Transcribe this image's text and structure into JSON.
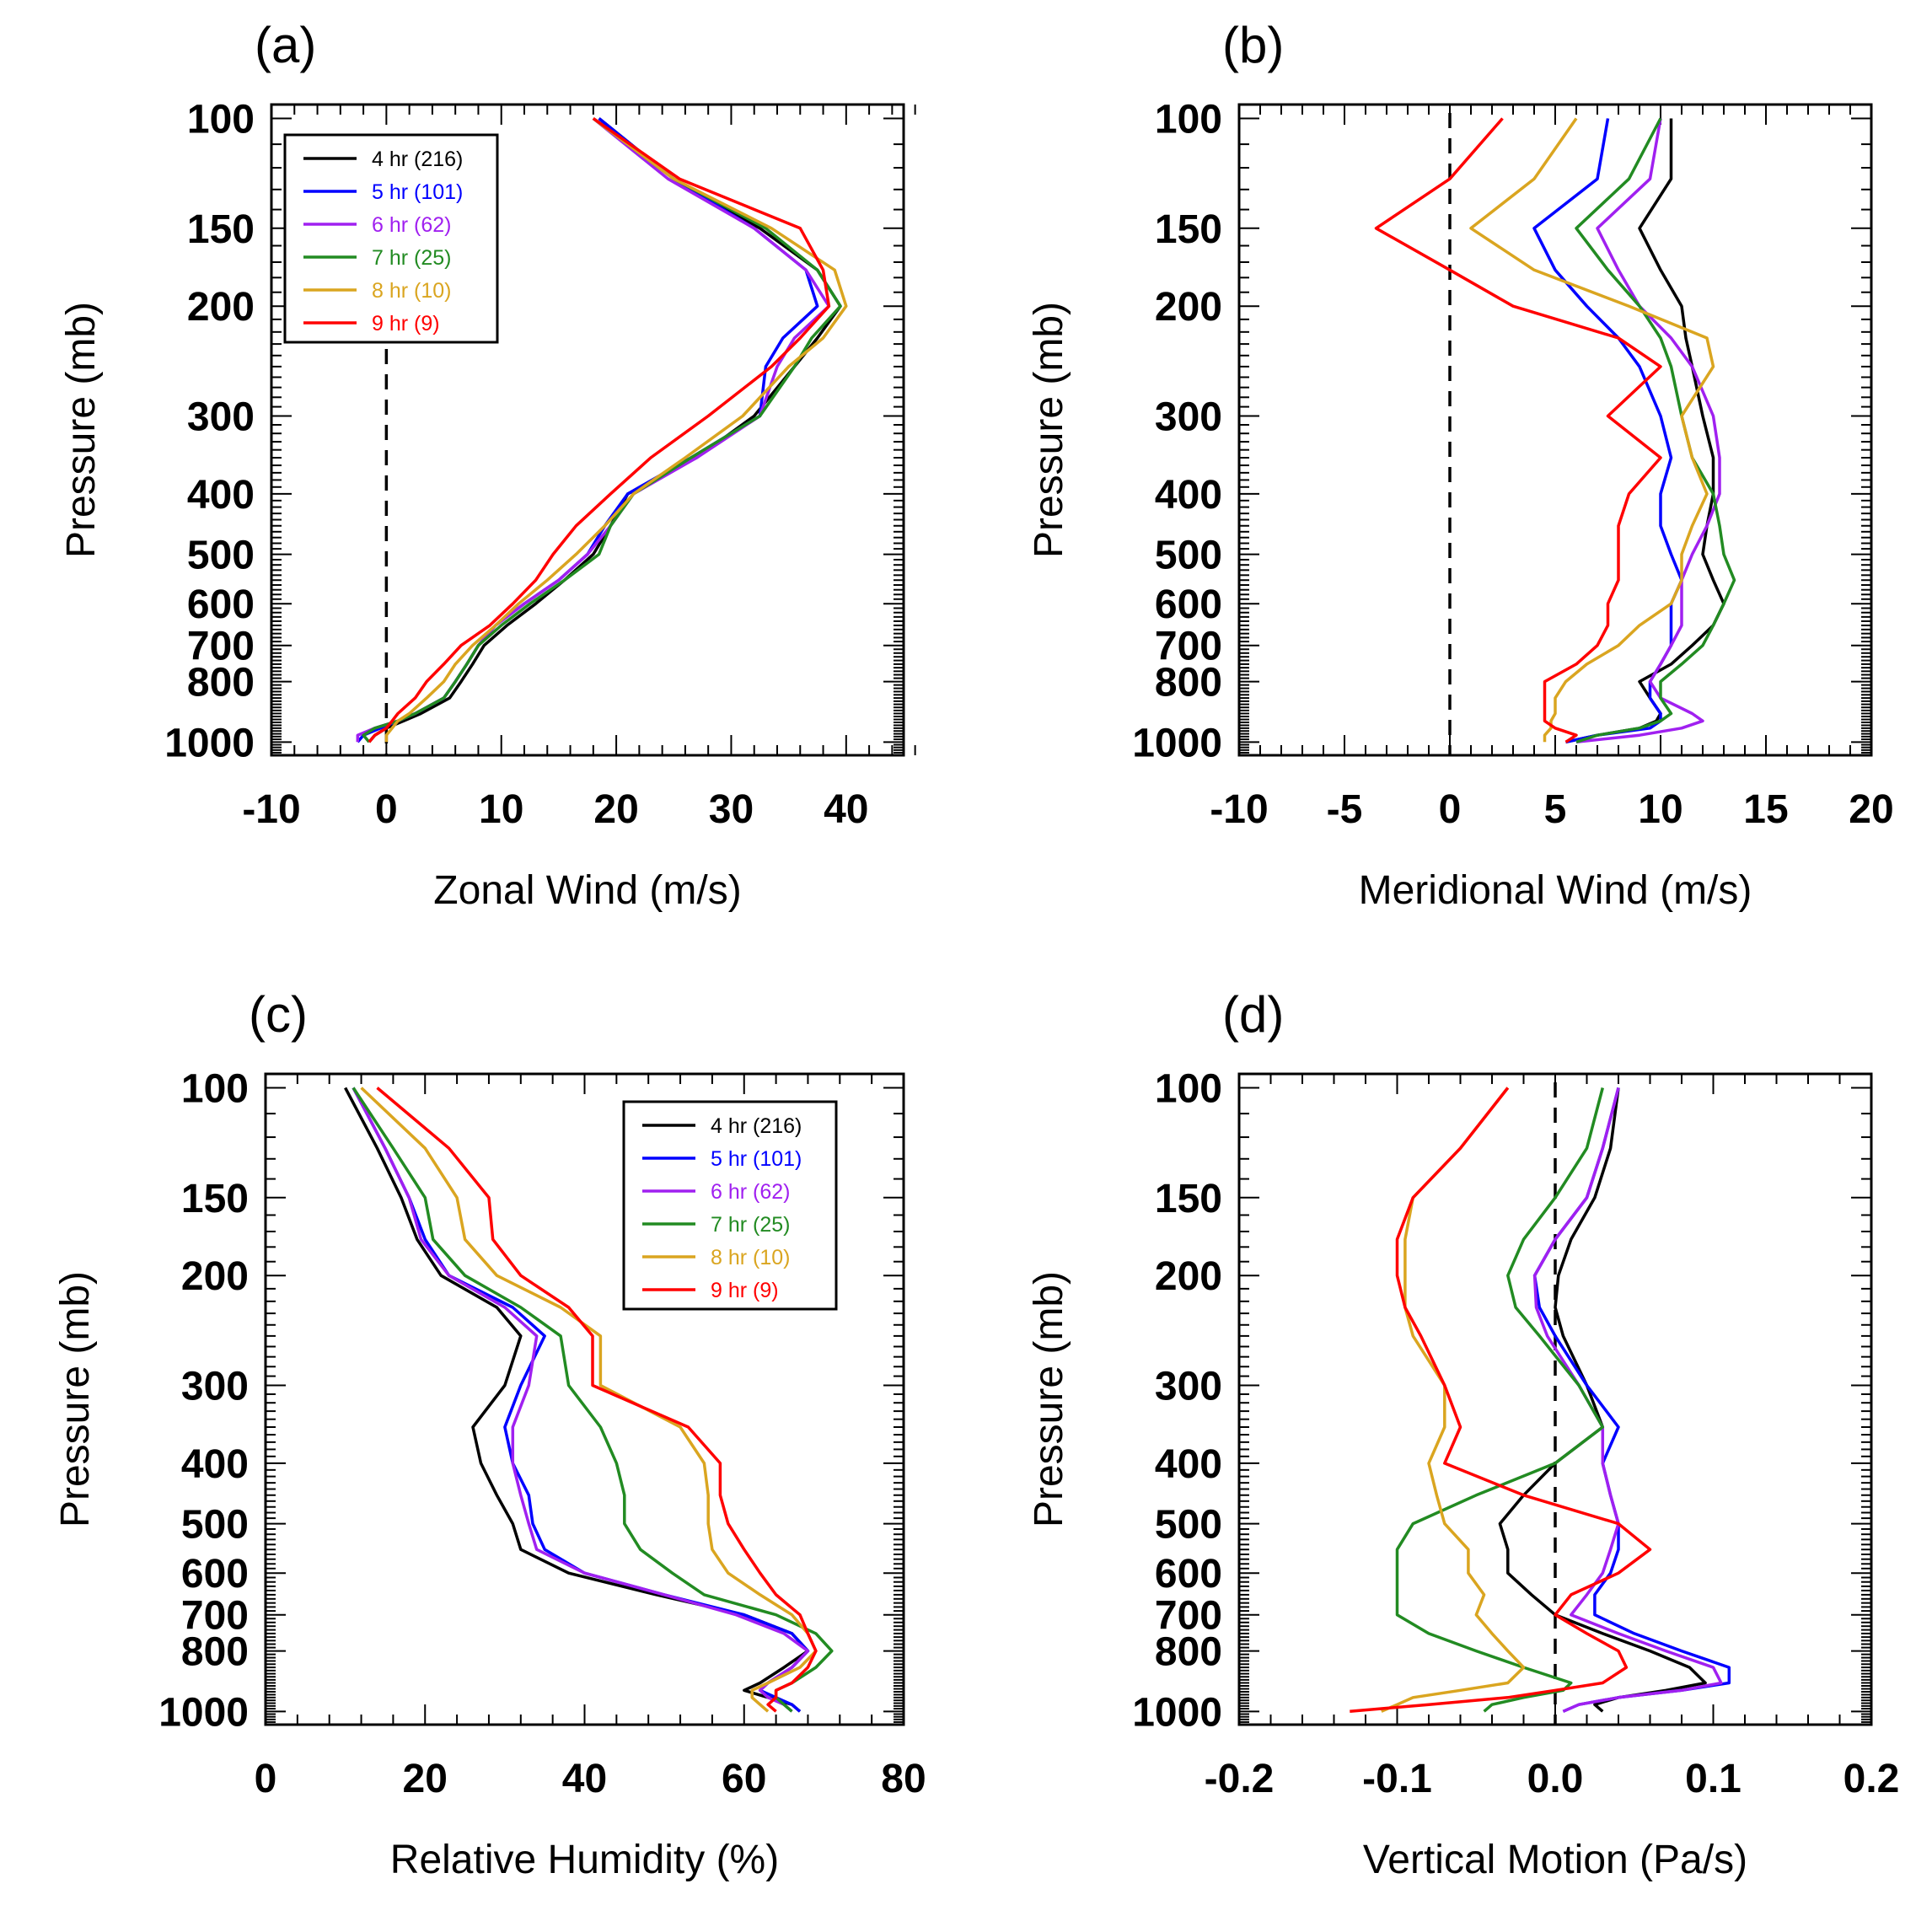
{
  "chart_data": [
    {
      "panel": "(a)",
      "type": "line",
      "xlabel": "Zonal Wind (m/s)",
      "ylabel": "Pressure (mb)",
      "xlim": [
        -10,
        45
      ],
      "xticks": [
        -10,
        0,
        10,
        20,
        30,
        40
      ],
      "y_scale": "log",
      "ylim": [
        1050,
        95
      ],
      "yticks": [
        100,
        150,
        200,
        300,
        400,
        500,
        600,
        700,
        800,
        1000
      ],
      "zero_line": 0,
      "legend": "top-left",
      "pressure_levels": [
        100,
        125,
        150,
        175,
        200,
        225,
        250,
        300,
        350,
        400,
        450,
        500,
        550,
        600,
        650,
        700,
        750,
        800,
        850,
        900,
        925,
        950,
        975,
        1000
      ],
      "series": [
        {
          "name": "4 hr (216)",
          "color": "#000000",
          "values": [
            18.5,
            25,
            32.5,
            37.5,
            39.5,
            37.5,
            35.5,
            32,
            27,
            21,
            19.5,
            18,
            15.5,
            13,
            10.5,
            8.5,
            7.5,
            6.5,
            5.5,
            3,
            1.5,
            0,
            -1,
            -1.5
          ]
        },
        {
          "name": "5 hr (101)",
          "color": "#0000ff",
          "values": [
            18.5,
            25,
            32,
            36.5,
            37.5,
            34.5,
            33,
            32.5,
            26.5,
            21,
            19,
            17.5,
            15,
            12,
            9.5,
            8,
            7,
            6,
            5,
            2.5,
            1,
            -0.5,
            -2,
            -2.5
          ]
        },
        {
          "name": "6 hr (62)",
          "color": "#a020f0",
          "values": [
            18,
            24.5,
            32,
            36.5,
            38.5,
            35.5,
            34,
            32.5,
            27,
            21.5,
            19.5,
            17.5,
            15,
            12,
            9.5,
            8,
            7,
            6,
            5,
            2.5,
            1,
            -1,
            -2.5,
            -2.5
          ]
        },
        {
          "name": "7 hr (25)",
          "color": "#228b22",
          "values": [
            18,
            25,
            33,
            37.5,
            39.5,
            37,
            35.5,
            32.5,
            26.5,
            21.5,
            19.5,
            18.5,
            15.5,
            12.5,
            10,
            8,
            7,
            6,
            5,
            2.5,
            1,
            -1,
            -2,
            -1.5
          ]
        },
        {
          "name": "8 hr (10)",
          "color": "#daa520",
          "values": [
            18,
            25,
            33.5,
            39,
            40,
            38,
            35,
            31,
            26,
            21.5,
            19,
            16.5,
            14,
            11.5,
            9.5,
            7.5,
            6,
            5,
            3.5,
            2,
            1,
            0.5,
            0,
            0
          ]
        },
        {
          "name": "9 hr (9)",
          "color": "#ff0000",
          "values": [
            18,
            25.5,
            36,
            38,
            38.5,
            36,
            33.5,
            28,
            23,
            19.5,
            16.5,
            14.5,
            13,
            11,
            9,
            6.5,
            5,
            3.5,
            2.5,
            1,
            0.5,
            0,
            -1,
            -1.5
          ]
        }
      ]
    },
    {
      "panel": "(b)",
      "type": "line",
      "xlabel": "Meridional Wind (m/s)",
      "ylabel": "Pressure (mb)",
      "xlim": [
        -10,
        20
      ],
      "xticks": [
        -10,
        -5,
        0,
        5,
        10,
        15,
        20
      ],
      "y_scale": "log",
      "ylim": [
        1050,
        95
      ],
      "yticks": [
        100,
        150,
        200,
        300,
        400,
        500,
        600,
        700,
        800,
        1000
      ],
      "zero_line": 0,
      "pressure_levels": [
        100,
        125,
        150,
        175,
        200,
        225,
        250,
        300,
        350,
        400,
        450,
        500,
        550,
        600,
        650,
        700,
        750,
        800,
        850,
        900,
        925,
        950,
        975,
        1000
      ],
      "series": [
        {
          "name": "4 hr (216)",
          "color": "#000000",
          "values": [
            10.5,
            10.5,
            9,
            10,
            11,
            11.2,
            11.5,
            12,
            12.5,
            12.5,
            12.2,
            12,
            12.5,
            13,
            12.5,
            11.5,
            10.5,
            9,
            9.5,
            10,
            9.8,
            9,
            7,
            5.5
          ]
        },
        {
          "name": "5 hr (101)",
          "color": "#0000ff",
          "values": [
            7.5,
            7,
            4,
            5,
            6.5,
            8,
            9,
            10,
            10.5,
            10,
            10,
            10.5,
            11,
            10.5,
            10.5,
            10.5,
            10,
            9.5,
            9.5,
            10,
            10,
            9.5,
            7,
            5.5
          ]
        },
        {
          "name": "6 hr (62)",
          "color": "#a020f0",
          "values": [
            10,
            9.5,
            7,
            8,
            9,
            10.5,
            11.5,
            12.5,
            12.8,
            12.8,
            12.2,
            11.5,
            11,
            11,
            11,
            10.5,
            10,
            9.5,
            10,
            11.5,
            12,
            11,
            9,
            6
          ]
        },
        {
          "name": "7 hr (25)",
          "color": "#228b22",
          "values": [
            10,
            8.5,
            6,
            7.5,
            9,
            10,
            10.5,
            11,
            11.5,
            12.5,
            12.8,
            13,
            13.5,
            13,
            12.5,
            12,
            11,
            10,
            10,
            10.5,
            10,
            9,
            7,
            6
          ]
        },
        {
          "name": "8 hr (10)",
          "color": "#daa520",
          "values": [
            6,
            4,
            1,
            4,
            8.5,
            12.2,
            12.5,
            11,
            11.5,
            12.2,
            11.5,
            11,
            11,
            10.5,
            9,
            8,
            6.5,
            5.5,
            5,
            5,
            4.8,
            4.8,
            4.5,
            4.5
          ]
        },
        {
          "name": "9 hr (9)",
          "color": "#ff0000",
          "values": [
            2.5,
            0,
            -3.5,
            0,
            3,
            8,
            10,
            7.5,
            10,
            8.5,
            8,
            8,
            8,
            7.5,
            7.5,
            7,
            6,
            4.5,
            4.5,
            4.5,
            4.5,
            5,
            6,
            5.5
          ]
        }
      ]
    },
    {
      "panel": "(c)",
      "type": "line",
      "xlabel": "Relative Humidity (%)",
      "ylabel": "Pressure (mb)",
      "xlim": [
        0,
        80
      ],
      "xticks": [
        0,
        20,
        40,
        60,
        80
      ],
      "y_scale": "log",
      "ylim": [
        1050,
        95
      ],
      "yticks": [
        100,
        150,
        200,
        300,
        400,
        500,
        600,
        700,
        800,
        1000
      ],
      "legend": "top-right",
      "pressure_levels": [
        100,
        125,
        150,
        175,
        200,
        225,
        250,
        300,
        350,
        400,
        450,
        500,
        550,
        600,
        650,
        700,
        750,
        800,
        850,
        900,
        925,
        950,
        975,
        1000
      ],
      "series": [
        {
          "name": "4 hr (216)",
          "color": "#000000",
          "values": [
            10,
            14,
            17,
            19,
            22,
            29,
            32,
            30,
            26,
            27,
            29,
            31,
            32,
            38,
            49,
            60,
            66,
            68,
            65,
            62,
            60,
            63,
            66,
            67
          ]
        },
        {
          "name": "5 hr (101)",
          "color": "#0000ff",
          "values": [
            11,
            15,
            18,
            20,
            23,
            31,
            35,
            32,
            30,
            31,
            33,
            33.5,
            35,
            40,
            50,
            60,
            66,
            68,
            66,
            63,
            62,
            64,
            66,
            67
          ]
        },
        {
          "name": "6 hr (62)",
          "color": "#a020f0",
          "values": [
            11,
            15,
            18,
            19.5,
            23,
            30,
            34,
            33,
            31,
            31,
            32,
            33,
            34,
            40,
            50,
            59,
            65,
            68,
            66,
            63,
            62,
            63,
            65,
            66
          ]
        },
        {
          "name": "7 hr (25)",
          "color": "#228b22",
          "values": [
            11,
            16,
            20,
            21,
            25,
            32,
            37,
            38,
            42,
            44,
            45,
            45,
            47,
            51,
            55,
            64,
            69,
            71,
            69,
            66,
            64,
            64,
            65,
            66
          ]
        },
        {
          "name": "8 hr (10)",
          "color": "#daa520",
          "values": [
            12,
            20,
            24,
            25,
            29,
            37,
            42,
            42,
            52,
            55,
            55.5,
            55.5,
            56,
            58,
            62,
            66,
            68,
            69,
            67,
            63,
            61,
            61,
            62,
            63
          ]
        },
        {
          "name": "9 hr (9)",
          "color": "#ff0000",
          "values": [
            14,
            23,
            28,
            28.5,
            32,
            38,
            41,
            41,
            53,
            57,
            57,
            58,
            60,
            62,
            64,
            67,
            68,
            69,
            68,
            66,
            64,
            64,
            63,
            64
          ]
        }
      ]
    },
    {
      "panel": "(d)",
      "type": "line",
      "xlabel": "Vertical Motion (Pa/s)",
      "ylabel": "Pressure (mb)",
      "xlim": [
        -0.2,
        0.2
      ],
      "xticks": [
        -0.2,
        -0.1,
        0.0,
        0.1,
        0.2
      ],
      "xtick_labels": [
        "-0.2",
        "-0.1",
        "0.0",
        "0.1",
        "0.2"
      ],
      "y_scale": "log",
      "ylim": [
        1050,
        95
      ],
      "yticks": [
        100,
        150,
        200,
        300,
        400,
        500,
        600,
        700,
        800,
        1000
      ],
      "zero_line": 0,
      "pressure_levels": [
        100,
        125,
        150,
        175,
        200,
        225,
        250,
        300,
        350,
        400,
        450,
        500,
        550,
        600,
        650,
        700,
        750,
        800,
        850,
        900,
        925,
        950,
        975,
        1000
      ],
      "series": [
        {
          "name": "4 hr (216)",
          "color": "#000000",
          "values": [
            0.04,
            0.035,
            0.025,
            0.01,
            0.002,
            0.0,
            0.005,
            0.02,
            0.03,
            0.0,
            -0.02,
            -0.035,
            -0.03,
            -0.03,
            -0.015,
            0.0,
            0.03,
            0.06,
            0.085,
            0.095,
            0.07,
            0.04,
            0.025,
            0.03
          ]
        },
        {
          "name": "5 hr (101)",
          "color": "#0000ff",
          "values": [
            0.04,
            0.03,
            0.02,
            0.0,
            -0.013,
            -0.01,
            0.0,
            0.02,
            0.04,
            0.03,
            0.035,
            0.04,
            0.04,
            0.035,
            0.025,
            0.025,
            0.05,
            0.08,
            0.11,
            0.11,
            0.08,
            0.04,
            0.015,
            0.005
          ]
        },
        {
          "name": "6 hr (62)",
          "color": "#a020f0",
          "values": [
            0.04,
            0.03,
            0.02,
            0.0,
            -0.013,
            -0.012,
            -0.005,
            0.015,
            0.03,
            0.03,
            0.035,
            0.04,
            0.035,
            0.03,
            0.02,
            0.01,
            0.04,
            0.07,
            0.1,
            0.105,
            0.08,
            0.04,
            0.015,
            0.005
          ]
        },
        {
          "name": "7 hr (25)",
          "color": "#228b22",
          "values": [
            0.03,
            0.02,
            0.0,
            -0.02,
            -0.03,
            -0.025,
            -0.01,
            0.015,
            0.03,
            0.0,
            -0.05,
            -0.09,
            -0.1,
            -0.1,
            -0.1,
            -0.1,
            -0.08,
            -0.05,
            -0.02,
            0.01,
            0.005,
            -0.02,
            -0.04,
            -0.045
          ]
        },
        {
          "name": "8 hr (10)",
          "color": "#daa520",
          "values": [
            -0.03,
            -0.06,
            -0.09,
            -0.095,
            -0.095,
            -0.095,
            -0.09,
            -0.07,
            -0.07,
            -0.08,
            -0.075,
            -0.07,
            -0.055,
            -0.055,
            -0.045,
            -0.05,
            -0.04,
            -0.03,
            -0.02,
            -0.03,
            -0.06,
            -0.09,
            -0.1,
            -0.11
          ]
        },
        {
          "name": "9 hr (9)",
          "color": "#ff0000",
          "values": [
            -0.03,
            -0.06,
            -0.09,
            -0.1,
            -0.1,
            -0.095,
            -0.085,
            -0.07,
            -0.06,
            -0.07,
            -0.02,
            0.04,
            0.06,
            0.04,
            0.01,
            0.0,
            0.02,
            0.04,
            0.045,
            0.03,
            0.0,
            -0.03,
            -0.08,
            -0.13
          ]
        }
      ]
    }
  ]
}
